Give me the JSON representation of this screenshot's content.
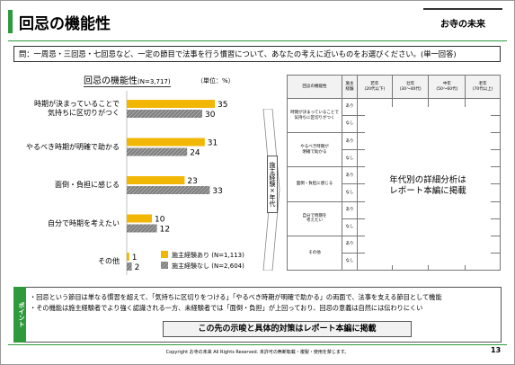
{
  "header": {
    "title": "回忌の機能性",
    "logo": "お寺の未来"
  },
  "question": "問：一周忌・三回忌・七回忌など、一定の節目で法事を行う慣習について、あなたの考えに近いものをお選びください。(単一回答)",
  "chart_data": {
    "type": "hbar",
    "title": "回忌の機能性",
    "sample": "(N=3,717)",
    "unit": "（単位：%）",
    "categories": [
      "時期が決まっていることで\n気持ちに区切りがつく",
      "やるべき時期が明確で助かる",
      "面倒・負担に感じる",
      "自分で時期を考えたい",
      "その他"
    ],
    "series": [
      {
        "name": "施主経験あり (N=1,113)",
        "color": "#f2b705",
        "values": [
          35,
          31,
          23,
          10,
          1
        ]
      },
      {
        "name": "施主経験なし (N=2,604)",
        "color": "#808080",
        "values": [
          30,
          24,
          33,
          12,
          2
        ]
      }
    ],
    "legend": "lower right"
  },
  "arrow_label": "施主経験×年代",
  "table": {
    "headers": [
      "回忌の機能性",
      "施主\n経験",
      "若年\n(20代以下)",
      "壮年\n(30〜40代)",
      "中年\n(50〜60代)",
      "老年\n(70代以上)"
    ],
    "row_labels": [
      "時期が決まっていることで\n気持ちに区切りがつく",
      "やるべき時期が\n明確で助かる",
      "面倒・負担に感じる",
      "自分で時期を\n考えたい",
      "その他"
    ],
    "experience": [
      "あり",
      "なし"
    ],
    "overlay": "年代別の詳細分析は\nレポート本編に掲載"
  },
  "point": {
    "label": "ポイント",
    "bullets": [
      "・回忌という節目は単なる慣習を超えて、「気持ちに区切りをつける」「やるべき時期が明確で助かる」の両面で、法事を支える節目として機能",
      "・その機能は施主経験者でより強く認識される一方、未経験者では「面倒・負担」が上回っており、回忌の意義は自然には伝わりにくい"
    ],
    "banner": "この先の示唆と具体的対策はレポート本編に掲載"
  },
  "footer": {
    "copyright": "Copyright お寺の未来 All Rights Reserved.  未許可の無断転載・複製・使用を禁じます。",
    "page": "13"
  }
}
